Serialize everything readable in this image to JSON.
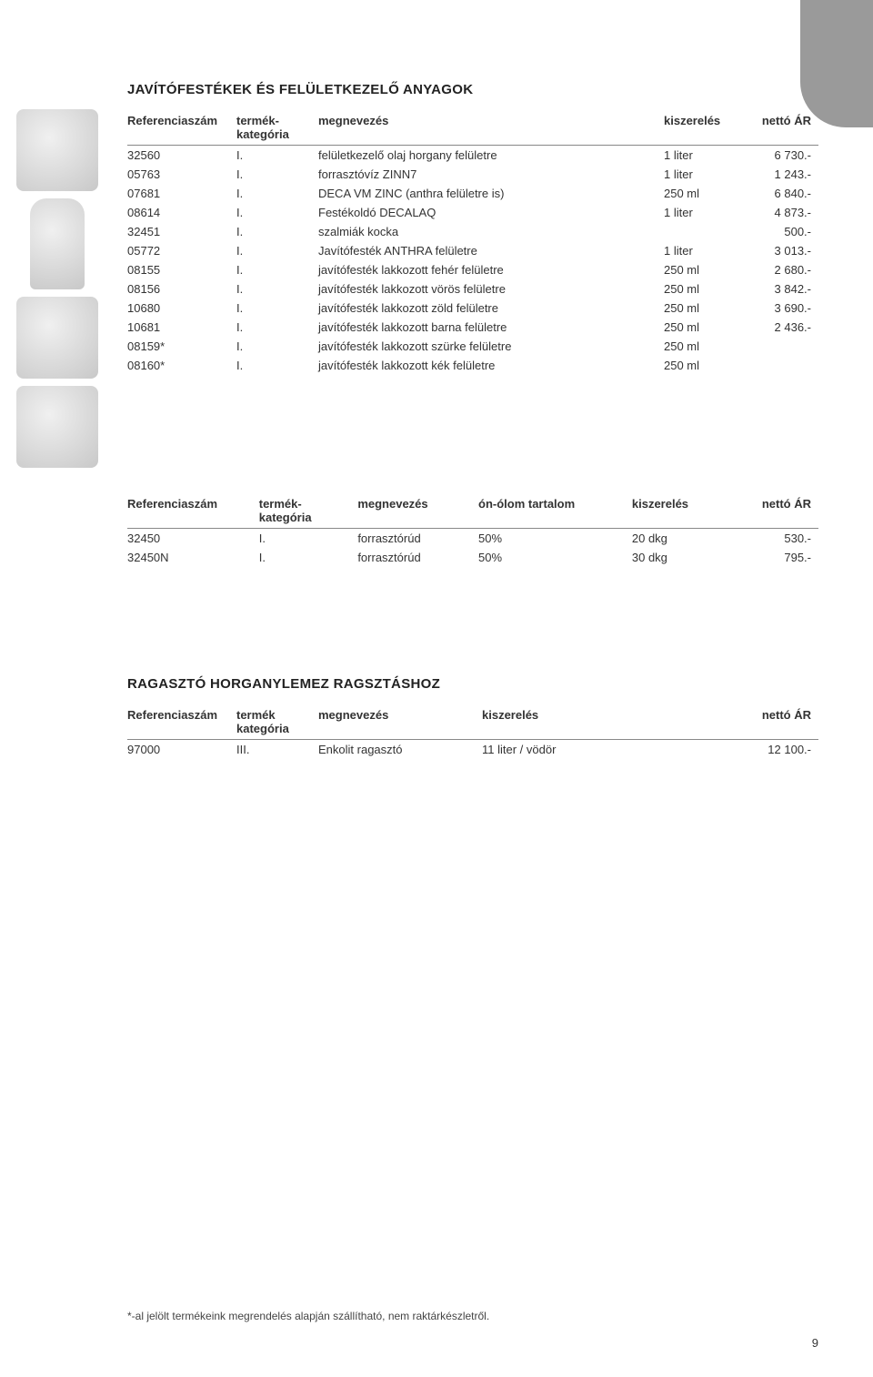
{
  "page_number": "9",
  "footnote": "*-al jelölt termékeink megrendelés alapján szállítható, nem raktárkészletről.",
  "section1": {
    "title": "JAVÍTÓFESTÉKEK ÉS FELÜLETKEZELŐ ANYAGOK",
    "headers": {
      "ref": "Referenciaszám",
      "cat": "termék-",
      "cat2": "kategória",
      "name": "megnevezés",
      "pack": "kiszerelés",
      "price": "nettó ÁR"
    },
    "rows": [
      {
        "ref": "32560",
        "cat": "I.",
        "name": "felületkezelő olaj horgany felületre",
        "pack": "1 liter",
        "price": "6 730.-"
      },
      {
        "ref": "05763",
        "cat": "I.",
        "name": "forrasztóvíz ZINN7",
        "pack": "1 liter",
        "price": "1 243.-"
      },
      {
        "ref": "07681",
        "cat": "I.",
        "name": "DECA VM ZINC (anthra felületre is)",
        "pack": "250 ml",
        "price": "6 840.-"
      },
      {
        "ref": "08614",
        "cat": "I.",
        "name": "Festékoldó DECALAQ",
        "pack": "1 liter",
        "price": "4 873.-"
      },
      {
        "ref": "32451",
        "cat": "I.",
        "name": "szalmiák kocka",
        "pack": "",
        "price": "500.-"
      },
      {
        "ref": "05772",
        "cat": "I.",
        "name": "Javítófesték ANTHRA felületre",
        "pack": "1 liter",
        "price": "3 013.-"
      },
      {
        "ref": "08155",
        "cat": "I.",
        "name": "javítófesték lakkozott fehér felületre",
        "pack": "250 ml",
        "price": "2 680.-"
      },
      {
        "ref": "08156",
        "cat": "I.",
        "name": "javítófesték lakkozott vörös felületre",
        "pack": "250 ml",
        "price": "3 842.-"
      },
      {
        "ref": "10680",
        "cat": "I.",
        "name": "javítófesték lakkozott zöld felületre",
        "pack": "250 ml",
        "price": "3 690.-"
      },
      {
        "ref": "10681",
        "cat": "I.",
        "name": "javítófesték lakkozott barna felületre",
        "pack": "250 ml",
        "price": "2 436.-"
      },
      {
        "ref": "08159*",
        "cat": "I.",
        "name": "javítófesték lakkozott szürke felületre",
        "pack": "250 ml",
        "price": ""
      },
      {
        "ref": "08160*",
        "cat": "I.",
        "name": "javítófesték lakkozott kék felületre",
        "pack": "250 ml",
        "price": ""
      }
    ]
  },
  "section2": {
    "headers": {
      "ref": "Referenciaszám",
      "cat": "termék-",
      "cat2": "kategória",
      "name": "megnevezés",
      "tin": "ón-ólom tartalom",
      "pack": "kiszerelés",
      "price": "nettó ÁR"
    },
    "rows": [
      {
        "ref": "32450",
        "cat": "I.",
        "name": "forrasztórúd",
        "tin": "50%",
        "pack": "20 dkg",
        "price": "530.-"
      },
      {
        "ref": "32450N",
        "cat": "I.",
        "name": "forrasztórúd",
        "tin": "50%",
        "pack": "30 dkg",
        "price": "795.-"
      }
    ]
  },
  "section3": {
    "title": "RAGASZTÓ HORGANYLEMEZ RAGSZTÁSHOZ",
    "headers": {
      "ref": "Referenciaszám",
      "cat": "termék",
      "cat2": "kategória",
      "name": "megnevezés",
      "pack": "kiszerelés",
      "price": "nettó ÁR"
    },
    "rows": [
      {
        "ref": "97000",
        "cat": "III.",
        "name": "Enkolit ragasztó",
        "pack": "11 liter / vödör",
        "price": "12 100.-"
      }
    ]
  },
  "style": {
    "background_color": "#ffffff",
    "text_color": "#333333",
    "tab_color": "#9a9a9a",
    "border_color": "#888888",
    "title_fontsize": 15,
    "body_fontsize": 13,
    "footnote_fontsize": 12
  }
}
